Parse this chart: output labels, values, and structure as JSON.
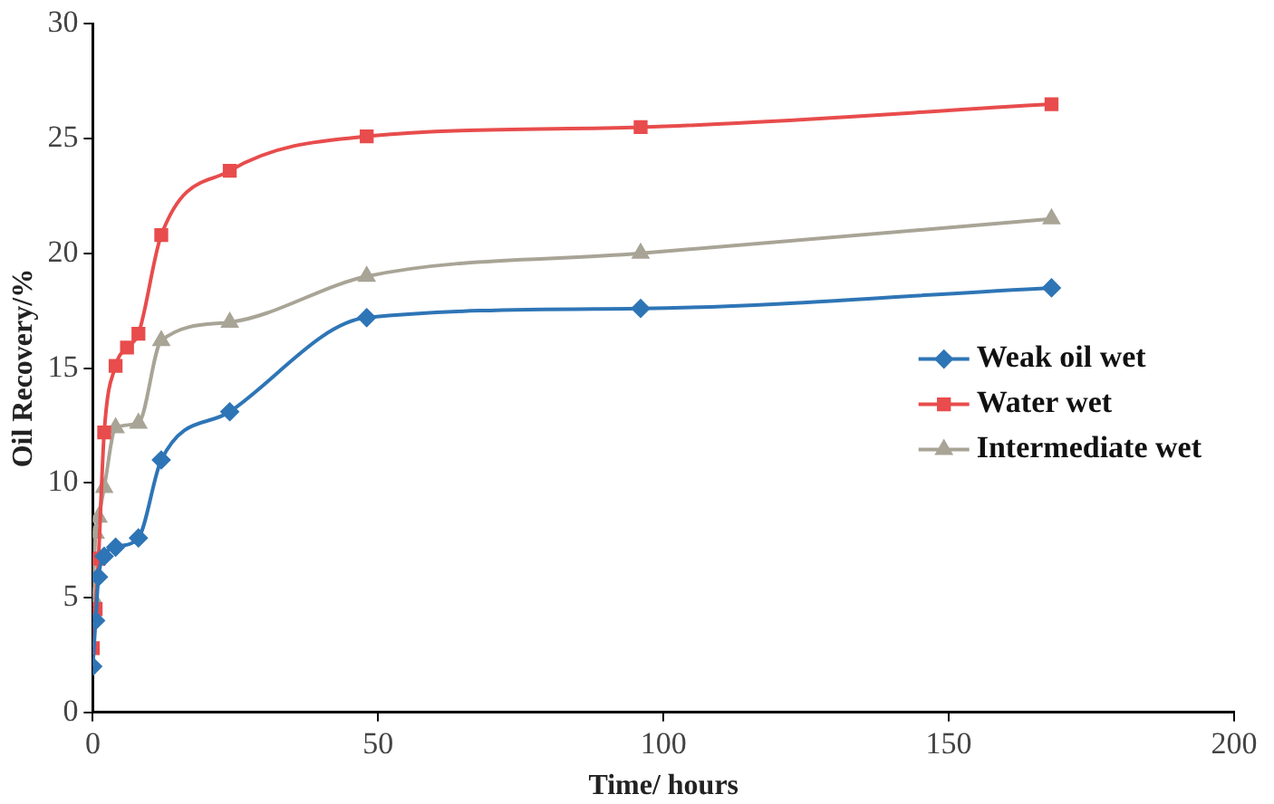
{
  "chart_data": {
    "type": "line",
    "xlabel": "Time/ hours",
    "ylabel": "Oil Recovery/%",
    "series": [
      {
        "name": "Weak oil wet",
        "color": "#2e75b6",
        "marker": "diamond",
        "x": [
          0,
          0.5,
          1,
          2,
          4,
          8,
          12,
          24,
          48,
          96,
          168
        ],
        "values": [
          2.0,
          4.0,
          5.9,
          6.8,
          7.2,
          7.6,
          11.0,
          13.1,
          17.2,
          17.6,
          18.5
        ]
      },
      {
        "name": "Water wet",
        "color": "#e84c4c",
        "marker": "square",
        "x": [
          0,
          0.5,
          1,
          2,
          4,
          6,
          8,
          12,
          24,
          48,
          96,
          168
        ],
        "values": [
          2.8,
          4.5,
          6.7,
          12.2,
          15.1,
          15.9,
          16.5,
          20.8,
          23.6,
          25.1,
          25.5,
          26.5
        ]
      },
      {
        "name": "Intermediate wet",
        "color": "#a8a496",
        "marker": "triangle",
        "x": [
          0,
          0.5,
          1,
          2,
          4,
          8,
          12,
          24,
          48,
          96,
          168
        ],
        "values": [
          5.0,
          7.8,
          8.5,
          9.8,
          12.4,
          12.6,
          16.2,
          17.0,
          19.0,
          20.0,
          21.5
        ]
      }
    ],
    "xlim": [
      0,
      200
    ],
    "xticks": [
      0,
      50,
      100,
      150,
      200
    ],
    "ylim": [
      0,
      30
    ],
    "yticks": [
      0,
      5,
      10,
      15,
      20,
      25,
      30
    ],
    "grid": false,
    "legend": "right"
  }
}
